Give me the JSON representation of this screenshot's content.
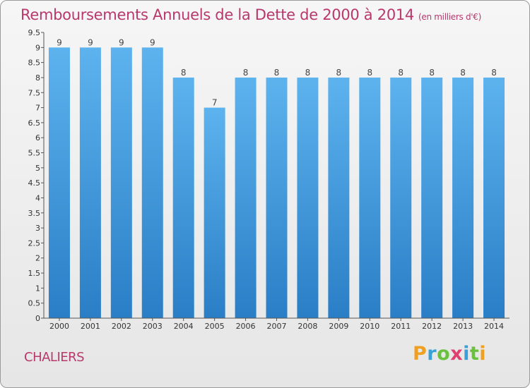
{
  "title": "Remboursements Annuels de la Dette de 2000 à 2014",
  "unit_label": "(en milliers d'€)",
  "commune": "CHALIERS",
  "logo": {
    "letters": [
      "P",
      "r",
      "o",
      "x",
      "i",
      "t",
      "i"
    ],
    "colors": [
      "#f0a020",
      "#3aa0d8",
      "#6cc040",
      "#e04070",
      "#3aa0d8",
      "#6cc040",
      "#f0a020"
    ]
  },
  "colors": {
    "title": "#b8386c",
    "bar_top": "#5db3ee",
    "bar_bottom": "#2a7ec6"
  },
  "chart_data": {
    "type": "bar",
    "title": "Remboursements Annuels de la Dette de 2000 à 2014",
    "categories": [
      "2000",
      "2001",
      "2002",
      "2003",
      "2004",
      "2005",
      "2006",
      "2007",
      "2008",
      "2009",
      "2010",
      "2011",
      "2012",
      "2013",
      "2014"
    ],
    "values": [
      9,
      9,
      9,
      9,
      8,
      7,
      8,
      8,
      8,
      8,
      8,
      8,
      8,
      8,
      8
    ],
    "ylim": [
      0,
      9.5
    ],
    "yticks": [
      "0",
      "0.5",
      "1",
      "1.5",
      "2",
      "2.5",
      "3",
      "3.5",
      "4",
      "4.5",
      "5",
      "5.5",
      "6",
      "6.5",
      "7",
      "7.5",
      "8",
      "8.5",
      "9",
      "9.5"
    ],
    "grid": false,
    "data_labels": true
  }
}
